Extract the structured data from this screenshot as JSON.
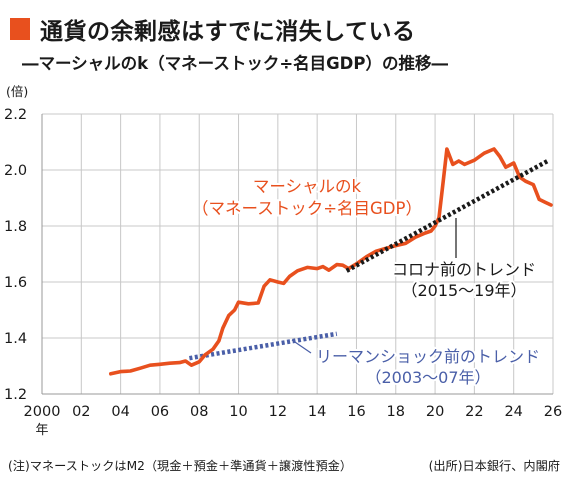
{
  "header": {
    "title": "通貨の余剰感はすでに消失している",
    "subtitle": "―マーシャルのk（マネーストック÷名目GDP）の推移―",
    "marker_color": "#e8501e"
  },
  "footer": {
    "note": "(注)マネーストックはM2（現金＋預金＋準通貨＋譲渡性預金）",
    "source": "(出所)日本銀行、内閣府"
  },
  "chart_data": {
    "type": "line",
    "ylabel": "(倍)",
    "ylim": [
      1.2,
      2.2
    ],
    "yticks": [
      "1.2",
      "1.4",
      "1.6",
      "1.8",
      "2.0",
      "2.2"
    ],
    "xlim": [
      2000,
      2026
    ],
    "xticks": [
      {
        "x": 2000,
        "label": "2000",
        "sub": "年"
      },
      {
        "x": 2002,
        "label": "02"
      },
      {
        "x": 2004,
        "label": "04"
      },
      {
        "x": 2006,
        "label": "06"
      },
      {
        "x": 2008,
        "label": "08"
      },
      {
        "x": 2010,
        "label": "10"
      },
      {
        "x": 2012,
        "label": "12"
      },
      {
        "x": 2014,
        "label": "14"
      },
      {
        "x": 2016,
        "label": "16"
      },
      {
        "x": 2018,
        "label": "18"
      },
      {
        "x": 2020,
        "label": "20"
      },
      {
        "x": 2022,
        "label": "22"
      },
      {
        "x": 2024,
        "label": "24"
      },
      {
        "x": 2026,
        "label": "26"
      }
    ],
    "grid": true,
    "series": [
      {
        "name": "マーシャルのk（マネーストック÷名目GDP）",
        "label_lines": [
          "マーシャルのk",
          "（マネーストック÷名目GDP）"
        ],
        "color": "#e8501e",
        "style": "solid",
        "points": [
          [
            2003.5,
            1.272
          ],
          [
            2004.0,
            1.28
          ],
          [
            2004.5,
            1.282
          ],
          [
            2005.0,
            1.292
          ],
          [
            2005.5,
            1.303
          ],
          [
            2006.0,
            1.306
          ],
          [
            2006.5,
            1.31
          ],
          [
            2007.0,
            1.312
          ],
          [
            2007.3,
            1.318
          ],
          [
            2007.6,
            1.303
          ],
          [
            2008.0,
            1.315
          ],
          [
            2008.3,
            1.34
          ],
          [
            2008.7,
            1.36
          ],
          [
            2009.0,
            1.39
          ],
          [
            2009.2,
            1.435
          ],
          [
            2009.5,
            1.48
          ],
          [
            2009.8,
            1.5
          ],
          [
            2010.0,
            1.528
          ],
          [
            2010.5,
            1.522
          ],
          [
            2011.0,
            1.525
          ],
          [
            2011.3,
            1.585
          ],
          [
            2011.6,
            1.608
          ],
          [
            2012.0,
            1.6
          ],
          [
            2012.3,
            1.595
          ],
          [
            2012.6,
            1.62
          ],
          [
            2013.0,
            1.64
          ],
          [
            2013.5,
            1.652
          ],
          [
            2014.0,
            1.648
          ],
          [
            2014.3,
            1.655
          ],
          [
            2014.6,
            1.642
          ],
          [
            2015.0,
            1.662
          ],
          [
            2015.3,
            1.66
          ],
          [
            2015.6,
            1.648
          ],
          [
            2016.0,
            1.665
          ],
          [
            2016.5,
            1.69
          ],
          [
            2017.0,
            1.71
          ],
          [
            2017.5,
            1.72
          ],
          [
            2018.0,
            1.73
          ],
          [
            2018.5,
            1.738
          ],
          [
            2019.0,
            1.76
          ],
          [
            2019.5,
            1.775
          ],
          [
            2019.8,
            1.782
          ],
          [
            2020.0,
            1.8
          ],
          [
            2020.2,
            1.83
          ],
          [
            2020.4,
            1.95
          ],
          [
            2020.6,
            2.075
          ],
          [
            2020.9,
            2.02
          ],
          [
            2021.2,
            2.032
          ],
          [
            2021.5,
            2.02
          ],
          [
            2022.0,
            2.035
          ],
          [
            2022.5,
            2.06
          ],
          [
            2023.0,
            2.075
          ],
          [
            2023.3,
            2.048
          ],
          [
            2023.6,
            2.01
          ],
          [
            2024.0,
            2.025
          ],
          [
            2024.3,
            1.975
          ],
          [
            2024.6,
            1.96
          ],
          [
            2025.0,
            1.948
          ],
          [
            2025.3,
            1.895
          ],
          [
            2025.6,
            1.885
          ],
          [
            2025.9,
            1.875
          ]
        ]
      },
      {
        "name": "コロナ前のトレンド（2015～19年）",
        "label_lines": [
          "コロナ前のトレンド",
          "（2015～19年）"
        ],
        "color": "#1a1a1a",
        "style": "dotted",
        "points": [
          [
            2015.5,
            1.64
          ],
          [
            2025.8,
            2.035
          ]
        ]
      },
      {
        "name": "リーマンショック前のトレンド（2003～07年）",
        "label_lines": [
          "リーマンショック前のトレンド",
          "（2003～07年）"
        ],
        "color": "#4a5fa8",
        "style": "dotted",
        "points": [
          [
            2007.5,
            1.328
          ],
          [
            2015.0,
            1.415
          ]
        ]
      }
    ]
  }
}
